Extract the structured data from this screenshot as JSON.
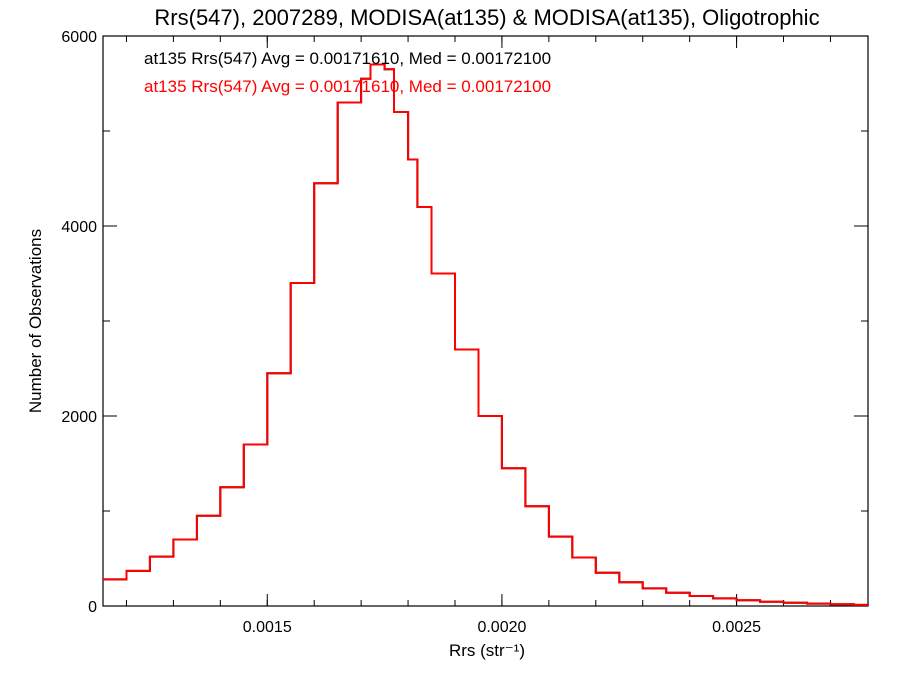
{
  "chart_data": {
    "type": "line",
    "style": "step",
    "title": "Rrs(547), 2007289, MODISA(at135) & MODISA(at135), Oligotrophic",
    "xlabel": "Rrs (str⁻¹)",
    "ylabel": "Number of Observations",
    "xlim": [
      0.00115,
      0.00278
    ],
    "ylim": [
      0,
      6000
    ],
    "x_ticks": [
      0.0015,
      0.002,
      0.0025
    ],
    "x_tick_labels": [
      "0.0015",
      "0.0020",
      "0.0025"
    ],
    "x_minor_step": 0.0001,
    "y_ticks": [
      0,
      2000,
      4000,
      6000
    ],
    "y_tick_labels": [
      "0",
      "2000",
      "4000",
      "6000"
    ],
    "y_minor_step": 1000,
    "grid": false,
    "legend": [
      {
        "text": "at135 Rrs(547) Avg = 0.00171610, Med = 0.00172100",
        "color": "#000000"
      },
      {
        "text": "at135 Rrs(547) Avg = 0.00171610, Med = 0.00172100",
        "color": "#ff0000"
      }
    ],
    "series": [
      {
        "color": "#000000",
        "x": [
          0.00115,
          0.0012,
          0.00125,
          0.0013,
          0.00135,
          0.0014,
          0.00145,
          0.0015,
          0.00155,
          0.0016,
          0.00165,
          0.0017,
          0.00172,
          0.00175,
          0.00177,
          0.0018,
          0.00182,
          0.00185,
          0.0019,
          0.00195,
          0.002,
          0.00205,
          0.0021,
          0.00215,
          0.0022,
          0.00225,
          0.0023,
          0.00235,
          0.0024,
          0.00245,
          0.0025,
          0.00255,
          0.0026,
          0.00265,
          0.0027,
          0.00275,
          0.00278
        ],
        "y": [
          280,
          370,
          520,
          700,
          950,
          1250,
          1700,
          2450,
          3400,
          4450,
          5300,
          5550,
          5700,
          5650,
          5200,
          4700,
          4200,
          3500,
          2700,
          2000,
          1450,
          1050,
          730,
          510,
          350,
          250,
          185,
          140,
          105,
          80,
          60,
          45,
          35,
          25,
          18,
          12,
          10
        ]
      },
      {
        "color": "#ff0000",
        "x": [
          0.00115,
          0.0012,
          0.00125,
          0.0013,
          0.00135,
          0.0014,
          0.00145,
          0.0015,
          0.00155,
          0.0016,
          0.00165,
          0.0017,
          0.00172,
          0.00175,
          0.00177,
          0.0018,
          0.00182,
          0.00185,
          0.0019,
          0.00195,
          0.002,
          0.00205,
          0.0021,
          0.00215,
          0.0022,
          0.00225,
          0.0023,
          0.00235,
          0.0024,
          0.00245,
          0.0025,
          0.00255,
          0.0026,
          0.00265,
          0.0027,
          0.00275,
          0.00278
        ],
        "y": [
          280,
          370,
          520,
          700,
          950,
          1250,
          1700,
          2450,
          3400,
          4450,
          5300,
          5550,
          5700,
          5650,
          5200,
          4700,
          4200,
          3500,
          2700,
          2000,
          1450,
          1050,
          730,
          510,
          350,
          250,
          185,
          140,
          105,
          80,
          60,
          45,
          35,
          25,
          18,
          12,
          10
        ]
      }
    ]
  }
}
